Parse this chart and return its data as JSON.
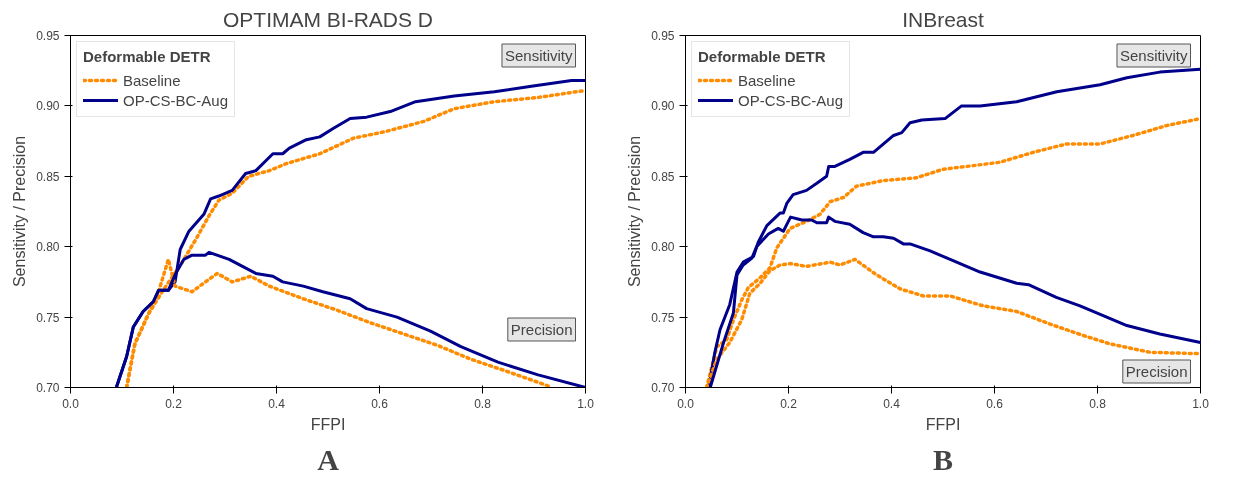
{
  "chart_data": [
    {
      "type": "line",
      "title": "OPTIMAM BI-RADS D",
      "xlabel": "FFPI",
      "ylabel": "Sensitivity / Precision",
      "legend_title": "Deformable DETR",
      "legend": "top left",
      "grid": false,
      "xlim": [
        0,
        1
      ],
      "ylim": [
        0.7,
        0.95
      ],
      "xticks": [
        {
          "value": 0,
          "label": "0.0"
        },
        {
          "value": 0.2,
          "label": "0.2"
        },
        {
          "value": 0.4,
          "label": "0.4"
        },
        {
          "value": 0.6,
          "label": "0.6"
        },
        {
          "value": 0.8,
          "label": "0.8"
        },
        {
          "value": 1,
          "label": "1.0"
        }
      ],
      "yticks": [
        {
          "value": 0.7,
          "label": "0.70"
        },
        {
          "value": 0.75,
          "label": "0.75"
        },
        {
          "value": 0.8,
          "label": "0.80"
        },
        {
          "value": 0.85,
          "label": "0.85"
        },
        {
          "value": 0.9,
          "label": "0.90"
        },
        {
          "value": 0.95,
          "label": "0.95"
        }
      ],
      "series": [
        {
          "name": "Baseline",
          "color": "#ff8c00",
          "line_style": "dotted",
          "x": [
            0.109,
            0.125,
            0.151,
            0.178,
            0.217,
            0.243,
            0.269,
            0.288,
            0.314,
            0.346,
            0.386,
            0.419,
            0.484,
            0.549,
            0.614,
            0.686,
            0.745,
            0.823,
            0.908,
            1.0
          ],
          "values": [
            0.7,
            0.731,
            0.752,
            0.768,
            0.789,
            0.805,
            0.822,
            0.833,
            0.838,
            0.85,
            0.854,
            0.859,
            0.866,
            0.877,
            0.882,
            0.889,
            0.898,
            0.903,
            0.906,
            0.911
          ]
        },
        {
          "name": "OP-CS-BC-Aug",
          "color": "#00008b",
          "line_style": "solid",
          "x": [
            0.089,
            0.109,
            0.122,
            0.141,
            0.161,
            0.171,
            0.19,
            0.203,
            0.213,
            0.23,
            0.259,
            0.272,
            0.288,
            0.314,
            0.34,
            0.36,
            0.393,
            0.412,
            0.425,
            0.458,
            0.484,
            0.51,
            0.543,
            0.575,
            0.621,
            0.67,
            0.745,
            0.823,
            0.895,
            0.973,
            1.0
          ],
          "values": [
            0.7,
            0.722,
            0.743,
            0.754,
            0.761,
            0.769,
            0.769,
            0.775,
            0.798,
            0.811,
            0.823,
            0.834,
            0.836,
            0.84,
            0.852,
            0.854,
            0.866,
            0.866,
            0.87,
            0.876,
            0.878,
            0.884,
            0.891,
            0.892,
            0.896,
            0.903,
            0.907,
            0.91,
            0.914,
            0.918,
            0.918
          ]
        },
        {
          "color": "#ff8c00",
          "line_style": "dotted",
          "x": [
            0.109,
            0.125,
            0.151,
            0.171,
            0.19,
            0.203,
            0.236,
            0.262,
            0.285,
            0.314,
            0.35,
            0.386,
            0.452,
            0.517,
            0.582,
            0.647,
            0.712,
            0.778,
            0.843,
            0.921,
            0.934
          ],
          "values": [
            0.7,
            0.731,
            0.752,
            0.768,
            0.791,
            0.772,
            0.768,
            0.775,
            0.781,
            0.775,
            0.779,
            0.772,
            0.763,
            0.755,
            0.746,
            0.738,
            0.73,
            0.72,
            0.712,
            0.702,
            0.7
          ]
        },
        {
          "color": "#00008b",
          "line_style": "solid",
          "x": [
            0.089,
            0.109,
            0.122,
            0.141,
            0.161,
            0.171,
            0.19,
            0.203,
            0.22,
            0.236,
            0.262,
            0.269,
            0.308,
            0.334,
            0.36,
            0.393,
            0.412,
            0.452,
            0.49,
            0.543,
            0.575,
            0.634,
            0.699,
            0.758,
            0.83,
            0.908,
            1.0
          ],
          "values": [
            0.7,
            0.722,
            0.743,
            0.754,
            0.761,
            0.769,
            0.769,
            0.78,
            0.791,
            0.794,
            0.794,
            0.796,
            0.791,
            0.786,
            0.781,
            0.779,
            0.775,
            0.772,
            0.768,
            0.763,
            0.756,
            0.75,
            0.74,
            0.729,
            0.718,
            0.709,
            0.7
          ]
        }
      ],
      "annotations": [
        "Sensitivity",
        "Precision",
        "A"
      ]
    },
    {
      "type": "line",
      "title": "INBreast",
      "xlabel": "FFPI",
      "ylabel": "Sensitivity / Precision",
      "legend_title": "Deformable DETR",
      "legend": "top left",
      "grid": false,
      "xlim": [
        0,
        1
      ],
      "ylim": [
        0.7,
        0.95
      ],
      "xticks": [
        {
          "value": 0,
          "label": "0.0"
        },
        {
          "value": 0.2,
          "label": "0.2"
        },
        {
          "value": 0.4,
          "label": "0.4"
        },
        {
          "value": 0.6,
          "label": "0.6"
        },
        {
          "value": 0.8,
          "label": "0.8"
        },
        {
          "value": 1,
          "label": "1.0"
        }
      ],
      "yticks": [
        {
          "value": 0.7,
          "label": "0.70"
        },
        {
          "value": 0.75,
          "label": "0.75"
        },
        {
          "value": 0.8,
          "label": "0.80"
        },
        {
          "value": 0.85,
          "label": "0.85"
        },
        {
          "value": 0.9,
          "label": "0.90"
        },
        {
          "value": 0.95,
          "label": "0.95"
        }
      ],
      "series": [
        {
          "name": "Baseline",
          "color": "#ff8c00",
          "line_style": "dotted",
          "x": [
            0.041,
            0.061,
            0.08,
            0.093,
            0.109,
            0.122,
            0.145,
            0.164,
            0.177,
            0.203,
            0.235,
            0.261,
            0.281,
            0.307,
            0.332,
            0.384,
            0.449,
            0.5,
            0.546,
            0.611,
            0.675,
            0.74,
            0.805,
            0.869,
            0.934,
            1.0
          ],
          "values": [
            0.7,
            0.729,
            0.734,
            0.748,
            0.762,
            0.771,
            0.778,
            0.785,
            0.799,
            0.813,
            0.818,
            0.823,
            0.832,
            0.835,
            0.843,
            0.847,
            0.849,
            0.855,
            0.857,
            0.86,
            0.867,
            0.873,
            0.873,
            0.879,
            0.886,
            0.891
          ]
        },
        {
          "name": "OP-CS-BC-Aug",
          "color": "#00008b",
          "line_style": "solid",
          "x": [
            0.045,
            0.057,
            0.067,
            0.086,
            0.1,
            0.112,
            0.132,
            0.141,
            0.158,
            0.184,
            0.19,
            0.197,
            0.209,
            0.235,
            0.255,
            0.274,
            0.278,
            0.29,
            0.319,
            0.345,
            0.365,
            0.404,
            0.42,
            0.436,
            0.459,
            0.504,
            0.536,
            0.572,
            0.643,
            0.721,
            0.805,
            0.857,
            0.921,
            1.0
          ],
          "values": [
            0.7,
            0.725,
            0.741,
            0.759,
            0.782,
            0.789,
            0.793,
            0.803,
            0.815,
            0.824,
            0.824,
            0.831,
            0.837,
            0.84,
            0.845,
            0.85,
            0.857,
            0.857,
            0.862,
            0.867,
            0.867,
            0.879,
            0.881,
            0.888,
            0.89,
            0.891,
            0.9,
            0.9,
            0.903,
            0.91,
            0.915,
            0.92,
            0.924,
            0.926
          ]
        },
        {
          "color": "#ff8c00",
          "line_style": "dotted",
          "x": [
            0.041,
            0.061,
            0.086,
            0.109,
            0.125,
            0.145,
            0.164,
            0.184,
            0.203,
            0.235,
            0.281,
            0.3,
            0.329,
            0.371,
            0.417,
            0.462,
            0.514,
            0.578,
            0.643,
            0.708,
            0.772,
            0.824,
            0.902,
            1.0
          ],
          "values": [
            0.7,
            0.72,
            0.732,
            0.748,
            0.767,
            0.774,
            0.783,
            0.787,
            0.788,
            0.786,
            0.789,
            0.787,
            0.791,
            0.78,
            0.77,
            0.765,
            0.765,
            0.758,
            0.754,
            0.745,
            0.737,
            0.731,
            0.725,
            0.724
          ]
        },
        {
          "color": "#00008b",
          "line_style": "solid",
          "x": [
            0.048,
            0.074,
            0.093,
            0.1,
            0.112,
            0.129,
            0.138,
            0.161,
            0.18,
            0.19,
            0.197,
            0.204,
            0.226,
            0.245,
            0.255,
            0.274,
            0.278,
            0.29,
            0.319,
            0.345,
            0.365,
            0.384,
            0.404,
            0.423,
            0.436,
            0.475,
            0.507,
            0.572,
            0.643,
            0.666,
            0.72,
            0.766,
            0.811,
            0.857,
            0.921,
            1.0
          ],
          "values": [
            0.7,
            0.732,
            0.753,
            0.78,
            0.787,
            0.792,
            0.8,
            0.809,
            0.813,
            0.811,
            0.816,
            0.821,
            0.819,
            0.819,
            0.817,
            0.817,
            0.821,
            0.818,
            0.816,
            0.81,
            0.807,
            0.807,
            0.806,
            0.802,
            0.802,
            0.797,
            0.792,
            0.782,
            0.774,
            0.773,
            0.764,
            0.758,
            0.751,
            0.744,
            0.738,
            0.732
          ]
        }
      ],
      "annotations": [
        "Sensitivity",
        "Precision",
        "B"
      ]
    }
  ]
}
